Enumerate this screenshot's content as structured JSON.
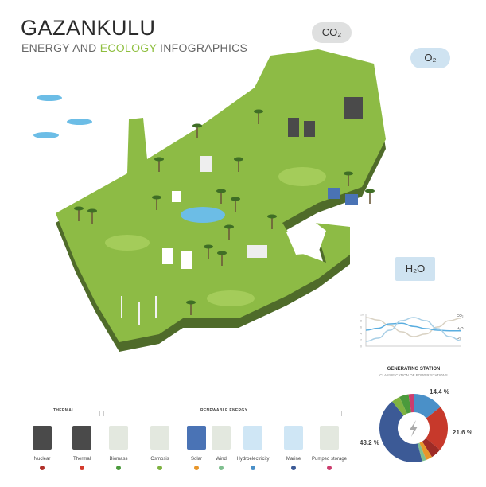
{
  "header": {
    "title": "GAZANKULU",
    "subtitle_prefix": "ENERGY AND ",
    "subtitle_highlight": "ECOLOGY",
    "subtitle_suffix": " INFOGRAPHICS"
  },
  "clouds": {
    "co2": "CO₂",
    "o2": "O₂",
    "h2o": "H₂O"
  },
  "colors": {
    "map": "#8dbb45",
    "map_side": "#4f6b2a",
    "accent": "#8fbf3f"
  },
  "legend": {
    "groups": [
      {
        "label": "THERMAL"
      },
      {
        "label": "RENEWABLE ENERGY"
      }
    ],
    "items": [
      {
        "label": "Nuclear",
        "color": "#b0302a",
        "icon": "nuclear-plant-icon"
      },
      {
        "label": "Thermal",
        "color": "#d43a2c",
        "icon": "factory-icon"
      },
      {
        "label": "Biomass",
        "color": "#4b9a3c",
        "icon": "biomass-plant-icon"
      },
      {
        "label": "Osmosis",
        "color": "#7fb241",
        "icon": "osmosis-plant-icon"
      },
      {
        "label": "Solar",
        "color": "#e8962a",
        "icon": "solar-panel-icon"
      },
      {
        "label": "Wind",
        "color": "#7fbf8f",
        "icon": "wind-turbine-icon"
      },
      {
        "label": "Hydroelectricity",
        "color": "#4a90c8",
        "icon": "dam-icon"
      },
      {
        "label": "Marine",
        "color": "#3c5a96",
        "icon": "marine-turbine-icon"
      },
      {
        "label": "Pumped storage",
        "color": "#cc3d6e",
        "icon": "pumped-storage-icon"
      }
    ]
  },
  "chart_data": [
    {
      "type": "line",
      "title": "",
      "yticks": [
        "0",
        "2",
        "4",
        "6",
        "8",
        "10"
      ],
      "ylim": [
        0,
        10
      ],
      "x": [
        0,
        1,
        2,
        3,
        4,
        5,
        6,
        7,
        8
      ],
      "series": [
        {
          "name": "CO₂",
          "color": "#d9d2c3",
          "values": [
            9,
            8.2,
            6.5,
            4.5,
            3,
            3.8,
            6,
            8,
            8.8
          ]
        },
        {
          "name": "H₂O",
          "color": "#5aaee0",
          "values": [
            5,
            5.6,
            7,
            7.2,
            6.2,
            5.5,
            5,
            4.8,
            4.8
          ]
        },
        {
          "name": "O₂",
          "color": "#a9cfe6",
          "values": [
            1.5,
            2.5,
            5,
            8,
            9,
            8,
            5.5,
            3,
            1.7
          ]
        }
      ]
    },
    {
      "type": "pie",
      "title": "GENERATING STATION",
      "subtitle": "CLASSIFICATION OF POWER STATIONS",
      "slices": [
        {
          "label": "Hydroelectricity",
          "value": 14.4,
          "display": "14.4 %",
          "color": "#4a90c8"
        },
        {
          "label": "Thermal",
          "value": 21.6,
          "display": "21.6 %",
          "color": "#c7392b"
        },
        {
          "label": "Nuclear",
          "value": 5,
          "color": "#9e2b26"
        },
        {
          "label": "Solar",
          "value": 3,
          "color": "#e8962a"
        },
        {
          "label": "Wind",
          "value": 2,
          "color": "#7fbf8f"
        },
        {
          "label": "Marine",
          "value": 43.2,
          "display": "43.2 %",
          "color": "#3c5a96"
        },
        {
          "label": "Osmosis",
          "value": 4,
          "color": "#7fb241"
        },
        {
          "label": "Biomass",
          "value": 4.4,
          "color": "#4b9a3c"
        },
        {
          "label": "Pumped storage",
          "value": 2.4,
          "color": "#cc3d6e"
        }
      ]
    }
  ]
}
